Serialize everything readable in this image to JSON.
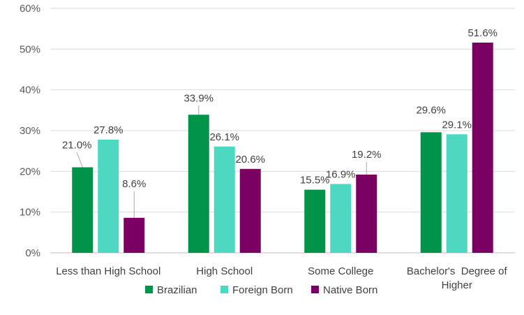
{
  "chart_data": {
    "type": "bar",
    "title": "",
    "xlabel": "",
    "ylabel": "",
    "ylim": [
      0,
      60
    ],
    "y_ticks": [
      0,
      10,
      20,
      30,
      40,
      50,
      60
    ],
    "y_tick_format": "{v}%",
    "grid": true,
    "legend_position": "bottom",
    "categories": [
      [
        "Less than High School"
      ],
      [
        "High School"
      ],
      [
        "Some College"
      ],
      [
        "Bachelor's  Degree of",
        "Higher"
      ]
    ],
    "series": [
      {
        "name": "Brazilian",
        "color": "#00944a",
        "values": [
          21.0,
          33.9,
          15.5,
          29.6
        ]
      },
      {
        "name": "Foreign Born",
        "color": "#4fd8c1",
        "values": [
          27.8,
          26.1,
          16.9,
          29.1
        ]
      },
      {
        "name": "Native Born",
        "color": "#7b0063",
        "values": [
          8.6,
          20.6,
          19.2,
          51.6
        ]
      }
    ],
    "data_label_format": "{v}%"
  }
}
